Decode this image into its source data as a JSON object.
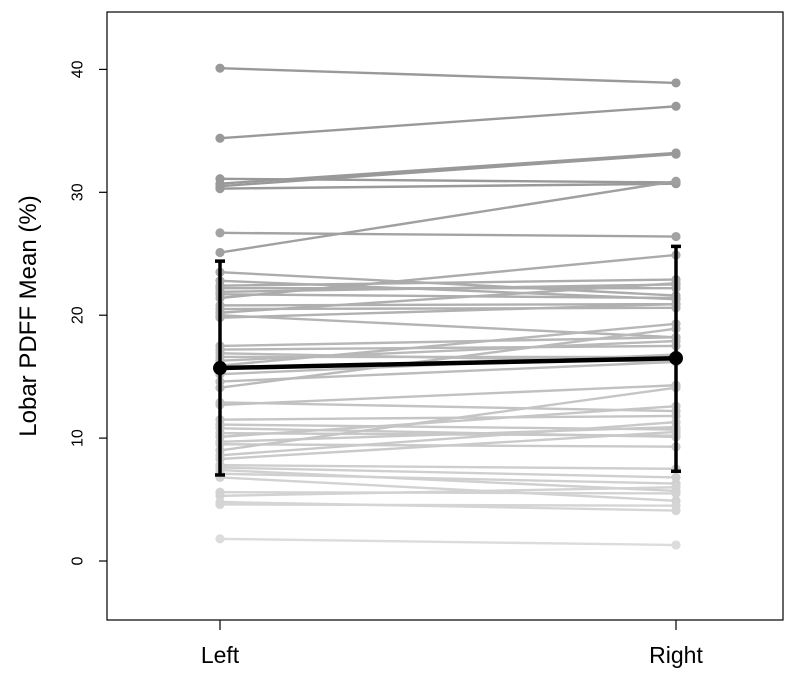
{
  "chart_data": {
    "type": "line",
    "title": "",
    "xlabel": "",
    "ylabel": "Lobar PDFF Mean (%)",
    "categories": [
      "Left",
      "Right"
    ],
    "yticks": [
      0,
      10,
      20,
      30,
      40
    ],
    "ylim": [
      -5,
      44.5
    ],
    "grid": false,
    "legend": "none",
    "colors": {
      "dark_line": "#999999",
      "light_line": "#dddddd",
      "mean": "#000000",
      "frame": "#000000"
    },
    "pairs": [
      [
        40.1,
        38.9
      ],
      [
        34.4,
        37.0
      ],
      [
        31.1,
        30.8
      ],
      [
        30.7,
        33.2
      ],
      [
        30.5,
        33.1
      ],
      [
        30.3,
        30.7
      ],
      [
        26.7,
        26.4
      ],
      [
        25.1,
        30.9
      ],
      [
        23.5,
        21.6
      ],
      [
        22.8,
        21.3
      ],
      [
        22.4,
        22.9
      ],
      [
        22.2,
        22.2
      ],
      [
        21.9,
        22.5
      ],
      [
        21.7,
        21.4
      ],
      [
        21.4,
        24.9
      ],
      [
        20.8,
        20.9
      ],
      [
        20.5,
        20.6
      ],
      [
        20.2,
        22.6
      ],
      [
        20.0,
        18.2
      ],
      [
        19.8,
        20.9
      ],
      [
        17.5,
        18.2
      ],
      [
        17.2,
        17.5
      ],
      [
        16.9,
        16.2
      ],
      [
        16.6,
        16.6
      ],
      [
        16.3,
        17.9
      ],
      [
        15.9,
        19.3
      ],
      [
        15.2,
        16.8
      ],
      [
        14.6,
        16.2
      ],
      [
        14.1,
        18.9
      ],
      [
        12.9,
        12.2
      ],
      [
        12.7,
        14.3
      ],
      [
        11.5,
        11.8
      ],
      [
        11.1,
        10.7
      ],
      [
        10.8,
        10.1
      ],
      [
        10.4,
        10.2
      ],
      [
        10.1,
        12.6
      ],
      [
        9.7,
        10.9
      ],
      [
        9.5,
        9.3
      ],
      [
        9.0,
        14.1
      ],
      [
        8.6,
        11.3
      ],
      [
        8.3,
        10.5
      ],
      [
        7.8,
        7.5
      ],
      [
        7.6,
        6.8
      ],
      [
        7.4,
        5.7
      ],
      [
        7.1,
        6.3
      ],
      [
        6.8,
        4.9
      ],
      [
        5.6,
        5.5
      ],
      [
        5.3,
        6.0
      ],
      [
        4.8,
        4.1
      ],
      [
        4.6,
        4.5
      ],
      [
        1.8,
        1.3
      ]
    ],
    "mean": {
      "values": [
        15.7,
        16.5
      ],
      "lower": [
        7.0,
        7.3
      ],
      "upper": [
        24.4,
        25.6
      ]
    }
  }
}
